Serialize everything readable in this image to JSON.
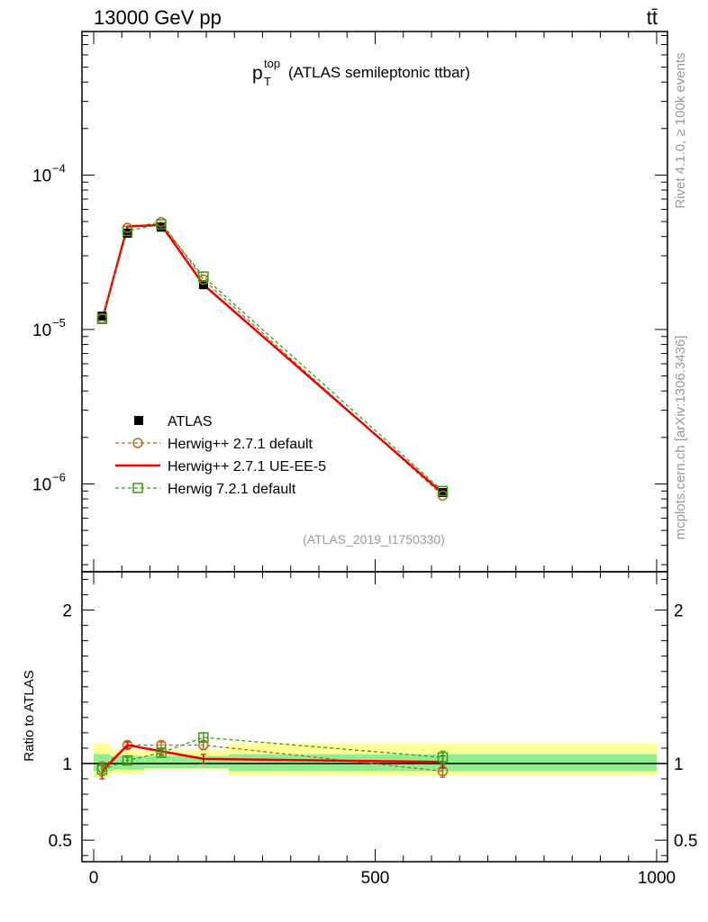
{
  "header": {
    "energy": "13000 GeV pp",
    "process": "tt̄"
  },
  "side": {
    "rivet": "Rivet 4.1.0, ≥ 100k events",
    "source": "mcplots.cern.ch [arXiv:1306.3436]"
  },
  "watermark": "(ATLAS_2019_I1750330)",
  "chart_data": [
    {
      "type": "line",
      "title": "(ATLAS semileptonic ttbar)",
      "title_var_base": "p",
      "title_var_sup": "top",
      "title_var_sub": "T",
      "yscale": "log",
      "ylim": [
        2.7e-07,
        0.00085
      ],
      "xlim": [
        -20,
        1020
      ],
      "yticks": [
        {
          "value": 1e-06,
          "base": "10",
          "exp": "−6"
        },
        {
          "value": 1e-05,
          "base": "10",
          "exp": "−5"
        },
        {
          "value": 0.0001,
          "base": "10",
          "exp": "−4"
        }
      ],
      "legend_position": "bottom-left",
      "series": [
        {
          "name": "ATLAS",
          "color": "#000000",
          "marker": "filled-square",
          "style": "markers",
          "x": [
            15,
            60,
            120,
            195,
            620
          ],
          "y": [
            1.22e-05,
            4.2e-05,
            4.6e-05,
            1.95e-05,
            8.8e-07
          ]
        },
        {
          "name": "Herwig++ 2.7.1 default",
          "color": "#b8651b",
          "marker": "open-circle",
          "style": "dashed",
          "x": [
            15,
            60,
            120,
            195,
            620
          ],
          "y": [
            1.18e-05,
            4.55e-05,
            4.95e-05,
            2.1e-05,
            8.4e-07
          ]
        },
        {
          "name": "Herwig++ 2.7.1 UE-EE-5",
          "color": "#ee0000",
          "marker": "none",
          "style": "solid",
          "x": [
            15,
            60,
            120,
            195,
            620
          ],
          "y": [
            1.15e-05,
            4.65e-05,
            4.75e-05,
            1.95e-05,
            8.7e-07
          ]
        },
        {
          "name": "Herwig 7.2.1 default",
          "color": "#3d9914",
          "marker": "open-square",
          "style": "dashed",
          "x": [
            15,
            60,
            120,
            195,
            620
          ],
          "y": [
            1.17e-05,
            4.35e-05,
            4.8e-05,
            2.2e-05,
            9e-07
          ]
        }
      ]
    },
    {
      "type": "line",
      "ylabel": "Ratio to ATLAS",
      "ylim": [
        0.36,
        2.25
      ],
      "xlim": [
        -20,
        1020
      ],
      "yticks": [
        {
          "value": 0.5,
          "label": "0.5"
        },
        {
          "value": 1,
          "label": "1"
        },
        {
          "value": 2,
          "label": "2"
        }
      ],
      "xticks": [
        {
          "value": 0,
          "label": "0"
        },
        {
          "value": 500,
          "label": "500"
        },
        {
          "value": 1000,
          "label": "1000"
        }
      ],
      "reference": 1,
      "bands": [
        {
          "x0": 0,
          "x1": 30,
          "y_lo": 0.91,
          "y_hi": 1.13,
          "inner_lo": 0.95,
          "inner_hi": 1.06
        },
        {
          "x0": 30,
          "x1": 90,
          "y_lo": 0.93,
          "y_hi": 1.09,
          "inner_lo": 0.96,
          "inner_hi": 1.05
        },
        {
          "x0": 90,
          "x1": 240,
          "y_lo": 0.96,
          "y_hi": 1.09,
          "inner_lo": 0.97,
          "inner_hi": 1.05
        },
        {
          "x0": 240,
          "x1": 1000,
          "y_lo": 0.92,
          "y_hi": 1.13,
          "inner_lo": 0.95,
          "inner_hi": 1.06
        }
      ],
      "series": [
        {
          "name": "Herwig++ 2.7.1 default",
          "color": "#b8651b",
          "marker": "open-circle",
          "style": "dashed",
          "x": [
            15,
            60,
            120,
            195,
            620
          ],
          "y": [
            0.97,
            1.12,
            1.12,
            1.12,
            0.95
          ],
          "err": [
            0.04,
            0.02,
            0.02,
            0.03,
            0.04
          ]
        },
        {
          "name": "Herwig++ 2.7.1 UE-EE-5",
          "color": "#ee0000",
          "marker": "none",
          "style": "solid",
          "x": [
            15,
            60,
            120,
            195,
            620
          ],
          "y": [
            0.95,
            1.12,
            1.08,
            1.03,
            1.01
          ],
          "err": [
            0.05,
            0.02,
            0.02,
            0.03,
            0.04
          ]
        },
        {
          "name": "Herwig 7.2.1 default",
          "color": "#3d9914",
          "marker": "open-square",
          "style": "dashed",
          "x": [
            15,
            60,
            120,
            195,
            620
          ],
          "y": [
            0.96,
            1.02,
            1.07,
            1.17,
            1.04
          ],
          "err": [
            0.04,
            0.02,
            0.02,
            0.03,
            0.04
          ]
        }
      ]
    }
  ]
}
